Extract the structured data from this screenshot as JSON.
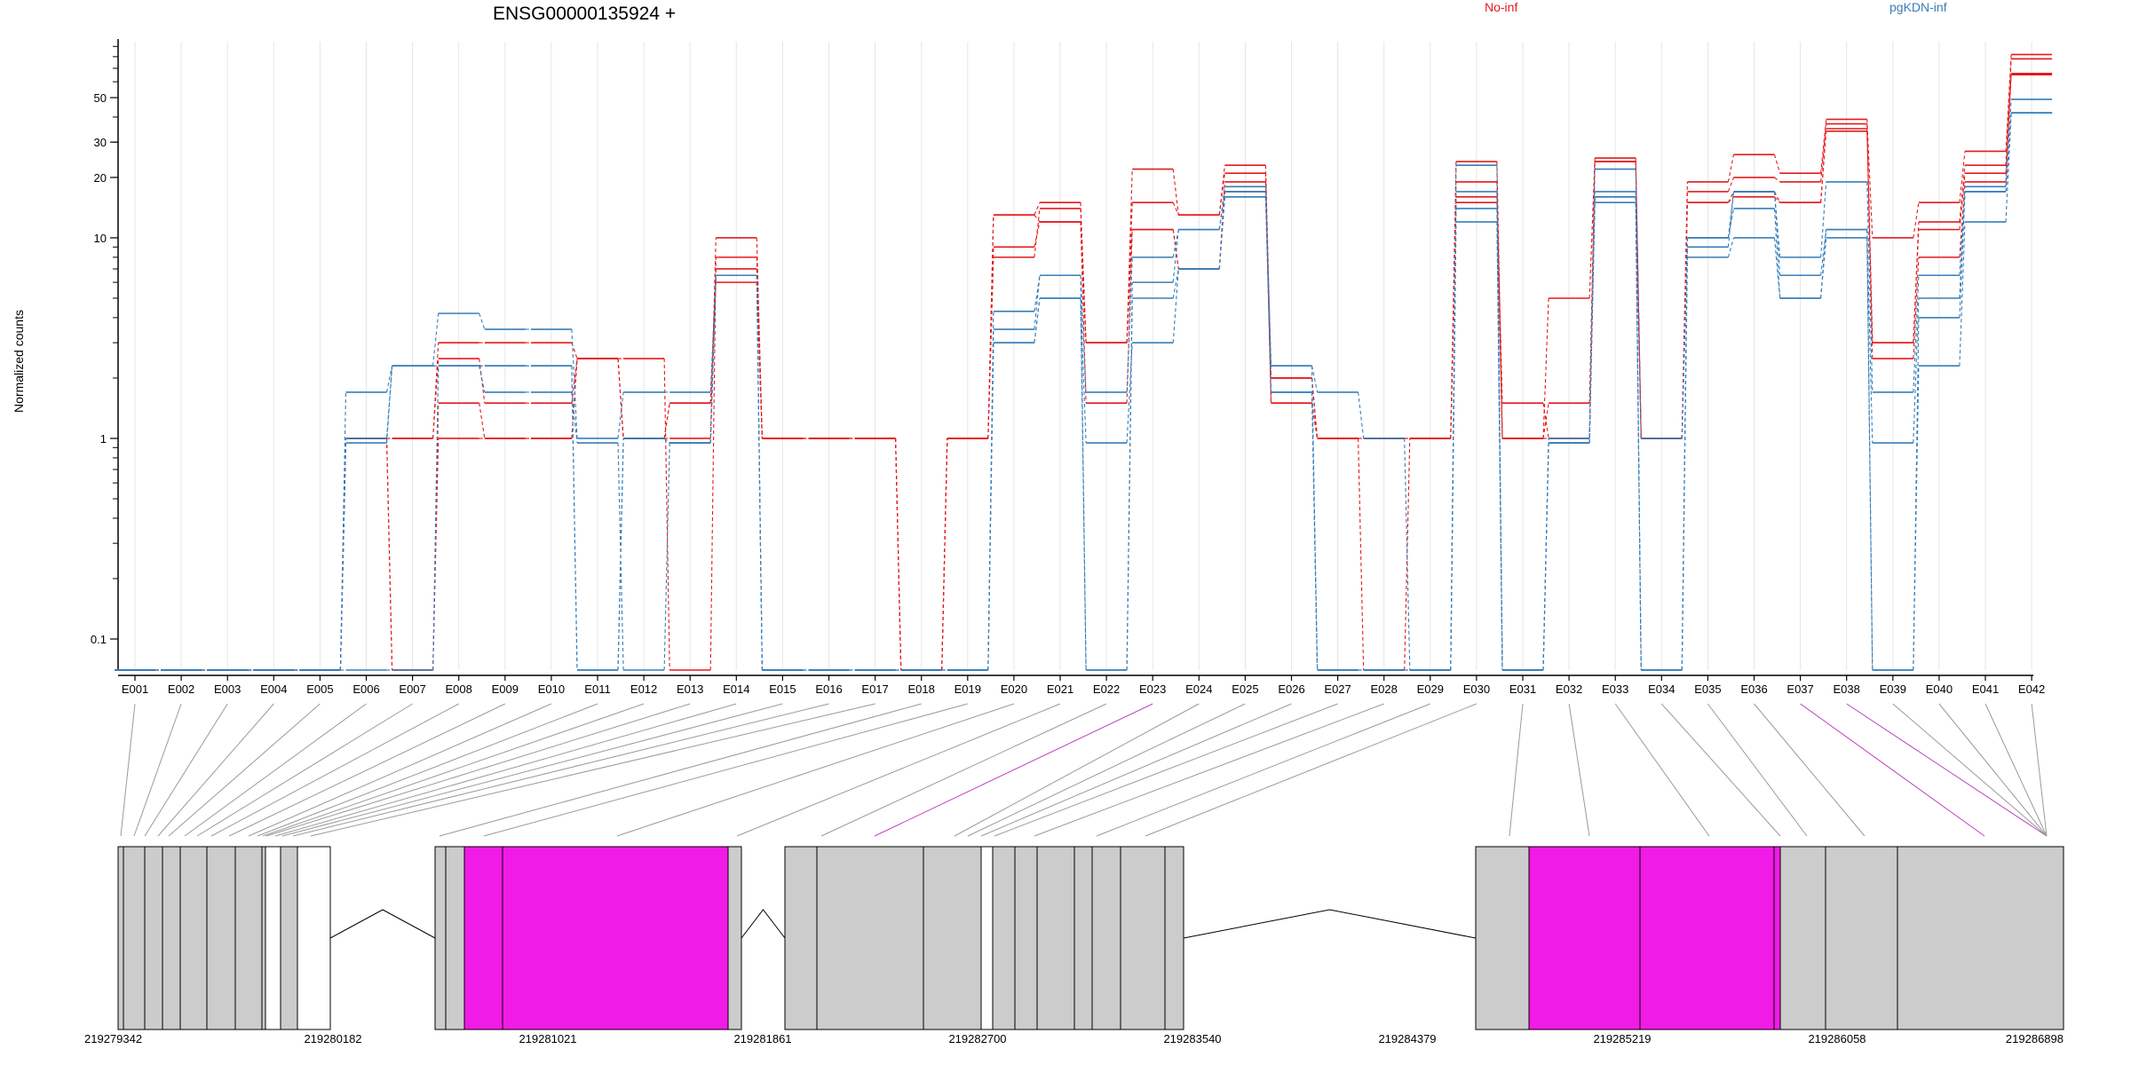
{
  "chart_data": {
    "type": "line",
    "title": "ENSG00000135924 +",
    "ylabel": "Normalized counts",
    "yscale": "log",
    "ylim": [
      0.07,
      95
    ],
    "yticks": [
      "0.1",
      "1",
      "10",
      "20",
      "30",
      "50"
    ],
    "legend_position": "top",
    "categories": [
      "E001",
      "E002",
      "E003",
      "E004",
      "E005",
      "E006",
      "E007",
      "E008",
      "E009",
      "E010",
      "E011",
      "E012",
      "E013",
      "E014",
      "E015",
      "E016",
      "E017",
      "E018",
      "E019",
      "E020",
      "E021",
      "E022",
      "E023",
      "E024",
      "E025",
      "E026",
      "E027",
      "E028",
      "E029",
      "E030",
      "E031",
      "E032",
      "E033",
      "E034",
      "E035",
      "E036",
      "E037",
      "E038",
      "E039",
      "E040",
      "E041",
      "E042"
    ],
    "groups": [
      {
        "name": "No-inf",
        "color": "#e41a1c"
      },
      {
        "name": "pgKDN-inf",
        "color": "#377eb8"
      }
    ],
    "series": [
      {
        "group": "No-inf",
        "values": [
          0.07,
          0.07,
          0.07,
          0.07,
          0.07,
          1,
          1,
          3,
          3,
          3,
          2.5,
          2.5,
          0.07,
          8,
          1,
          1,
          1,
          0.07,
          1,
          13,
          15,
          3,
          22,
          13,
          23,
          2,
          1,
          0.07,
          1,
          24,
          1,
          5,
          25,
          1,
          19,
          26,
          21,
          39,
          10,
          15,
          27,
          82
        ]
      },
      {
        "group": "No-inf",
        "values": [
          0.07,
          0.07,
          0.07,
          0.07,
          0.07,
          1,
          1,
          2.5,
          1.5,
          1.5,
          2.5,
          1,
          1,
          10,
          1,
          1,
          1,
          0.07,
          1,
          13,
          12,
          3,
          15,
          13,
          21,
          1.5,
          1,
          1,
          1,
          19,
          1,
          1.5,
          24,
          1,
          17,
          20,
          19,
          37,
          3,
          12,
          23,
          78
        ]
      },
      {
        "group": "No-inf",
        "values": [
          0.07,
          0.07,
          0.07,
          0.07,
          0.07,
          1,
          0.07,
          1.5,
          1,
          1,
          2.5,
          1,
          1.5,
          7,
          1,
          1,
          1,
          0.07,
          1,
          8,
          14,
          3,
          11,
          7,
          19,
          1.5,
          1,
          1,
          1,
          16,
          1.5,
          1,
          24,
          1,
          15,
          17,
          15,
          35,
          3,
          11,
          21,
          66
        ]
      },
      {
        "group": "No-inf",
        "values": [
          0.07,
          0.07,
          0.07,
          0.07,
          0.07,
          1,
          0.07,
          1,
          1,
          1,
          2.5,
          1,
          1.5,
          6,
          1,
          1,
          1,
          0.07,
          1,
          9,
          12,
          1.5,
          11,
          7,
          17,
          2,
          1,
          1,
          1,
          15,
          1,
          1,
          16,
          1,
          15,
          16,
          15,
          34,
          2.5,
          8,
          19,
          65
        ]
      },
      {
        "group": "pgKDN-inf",
        "values": [
          0.07,
          0.07,
          0.07,
          0.07,
          0.07,
          1.7,
          2.3,
          4.2,
          3.5,
          3.5,
          1,
          1.7,
          1.7,
          6.5,
          0.07,
          0.07,
          0.07,
          0.07,
          0.07,
          4.3,
          6.5,
          1.7,
          8,
          11,
          18,
          2.3,
          1.7,
          1,
          0.07,
          23,
          0.07,
          1,
          22,
          1,
          9,
          17,
          8,
          19,
          1.7,
          6.5,
          18,
          49
        ]
      },
      {
        "group": "pgKDN-inf",
        "values": [
          0.07,
          0.07,
          0.07,
          0.07,
          0.07,
          1,
          2.3,
          2.3,
          2.3,
          2.3,
          0.07,
          1,
          0.95,
          6.5,
          0.07,
          0.07,
          0.07,
          0.07,
          0.07,
          3.5,
          6.5,
          0.07,
          6,
          11,
          17,
          2.3,
          0.07,
          0.07,
          0.07,
          17,
          0.07,
          0.95,
          17,
          0.07,
          10,
          17,
          6.5,
          11,
          0.95,
          5,
          17,
          42
        ]
      },
      {
        "group": "pgKDN-inf",
        "values": [
          0.07,
          0.07,
          0.07,
          0.07,
          0.07,
          0.95,
          2.3,
          2.3,
          2.3,
          2.3,
          0.07,
          1,
          0.95,
          6.5,
          0.07,
          0.07,
          0.07,
          0.07,
          0.07,
          3,
          5,
          0.07,
          5,
          7,
          16,
          1.7,
          0.07,
          0.07,
          0.07,
          14,
          0.07,
          0.95,
          16,
          0.07,
          10,
          14,
          5,
          11,
          0.07,
          4,
          17,
          42
        ]
      },
      {
        "group": "pgKDN-inf",
        "values": [
          0.07,
          0.07,
          0.07,
          0.07,
          0.07,
          0.07,
          0.07,
          2.3,
          1.7,
          1.7,
          0.95,
          0.07,
          0.95,
          6.5,
          0.07,
          0.07,
          0.07,
          0.07,
          0.07,
          3,
          5,
          0.95,
          3,
          7,
          16,
          1.7,
          0.07,
          0.07,
          0.07,
          12,
          0.07,
          0.95,
          15,
          0.07,
          8,
          10,
          5,
          10,
          0.07,
          2.3,
          12,
          42
        ]
      }
    ],
    "genomic_coordinates": [
      "219279342",
      "219280182",
      "219281021",
      "219281861",
      "219282700",
      "219283540",
      "219284379",
      "219285219",
      "219286058",
      "219286898"
    ],
    "highlighted_exons": [
      "E023",
      "E037",
      "E038"
    ],
    "colors": {
      "highlight": "#f01be6",
      "exon": "#cccccc",
      "axis": "#000000",
      "grid": "#e6e6e6"
    }
  }
}
